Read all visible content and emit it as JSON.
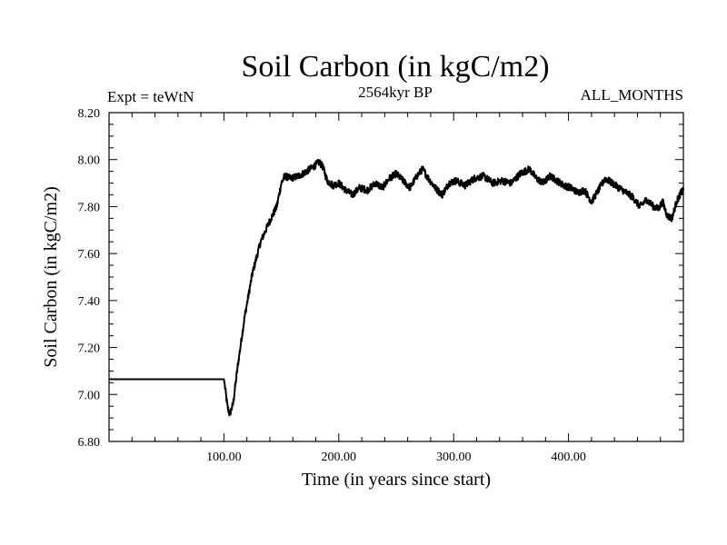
{
  "chart_data": {
    "type": "line",
    "title": "Soil Carbon (in kgC/m2)",
    "subtitle_left": "Expt = teWtN",
    "subtitle_center": "2564kyr BP",
    "subtitle_right": "ALL_MONTHS",
    "xlabel": "Time (in years since start)",
    "ylabel": "Soil Carbon (in kgC/m2)",
    "xlim": [
      0,
      500
    ],
    "ylim": [
      6.8,
      8.2
    ],
    "x_ticks": [
      {
        "value": 100,
        "label": "100.00"
      },
      {
        "value": 200,
        "label": "200.00"
      },
      {
        "value": 300,
        "label": "300.00"
      },
      {
        "value": 400,
        "label": "400.00"
      }
    ],
    "y_ticks": [
      {
        "value": 6.8,
        "label": "6.80"
      },
      {
        "value": 7.0,
        "label": "7.00"
      },
      {
        "value": 7.2,
        "label": "7.20"
      },
      {
        "value": 7.4,
        "label": "7.40"
      },
      {
        "value": 7.6,
        "label": "7.60"
      },
      {
        "value": 7.8,
        "label": "7.80"
      },
      {
        "value": 8.0,
        "label": "8.00"
      },
      {
        "value": 8.2,
        "label": "8.20"
      }
    ],
    "grid": false,
    "series": [
      {
        "name": "Soil Carbon",
        "x": [
          0,
          100,
          101,
          103,
          105,
          108,
          112,
          118,
          125,
          132,
          140,
          146,
          150,
          153,
          158,
          165,
          172,
          178,
          183,
          186,
          190,
          195,
          200,
          206,
          212,
          218,
          225,
          232,
          238,
          244,
          250,
          256,
          262,
          268,
          273,
          278,
          284,
          290,
          296,
          302,
          310,
          318,
          326,
          334,
          342,
          350,
          358,
          366,
          372,
          378,
          384,
          390,
          396,
          402,
          408,
          414,
          420,
          426,
          432,
          438,
          444,
          450,
          456,
          462,
          468,
          474,
          478,
          482,
          486,
          490,
          494,
          498,
          500
        ],
        "y": [
          7.065,
          7.065,
          7.03,
          6.95,
          6.915,
          6.96,
          7.12,
          7.33,
          7.52,
          7.65,
          7.74,
          7.8,
          7.9,
          7.93,
          7.92,
          7.93,
          7.95,
          7.97,
          7.99,
          7.97,
          7.91,
          7.89,
          7.9,
          7.87,
          7.85,
          7.88,
          7.87,
          7.9,
          7.88,
          7.92,
          7.94,
          7.91,
          7.88,
          7.93,
          7.96,
          7.92,
          7.88,
          7.85,
          7.9,
          7.91,
          7.89,
          7.92,
          7.93,
          7.9,
          7.91,
          7.9,
          7.94,
          7.96,
          7.92,
          7.9,
          7.93,
          7.91,
          7.89,
          7.88,
          7.86,
          7.87,
          7.82,
          7.87,
          7.92,
          7.9,
          7.88,
          7.86,
          7.84,
          7.8,
          7.83,
          7.8,
          7.79,
          7.82,
          7.76,
          7.75,
          7.82,
          7.86,
          7.87
        ]
      }
    ]
  }
}
